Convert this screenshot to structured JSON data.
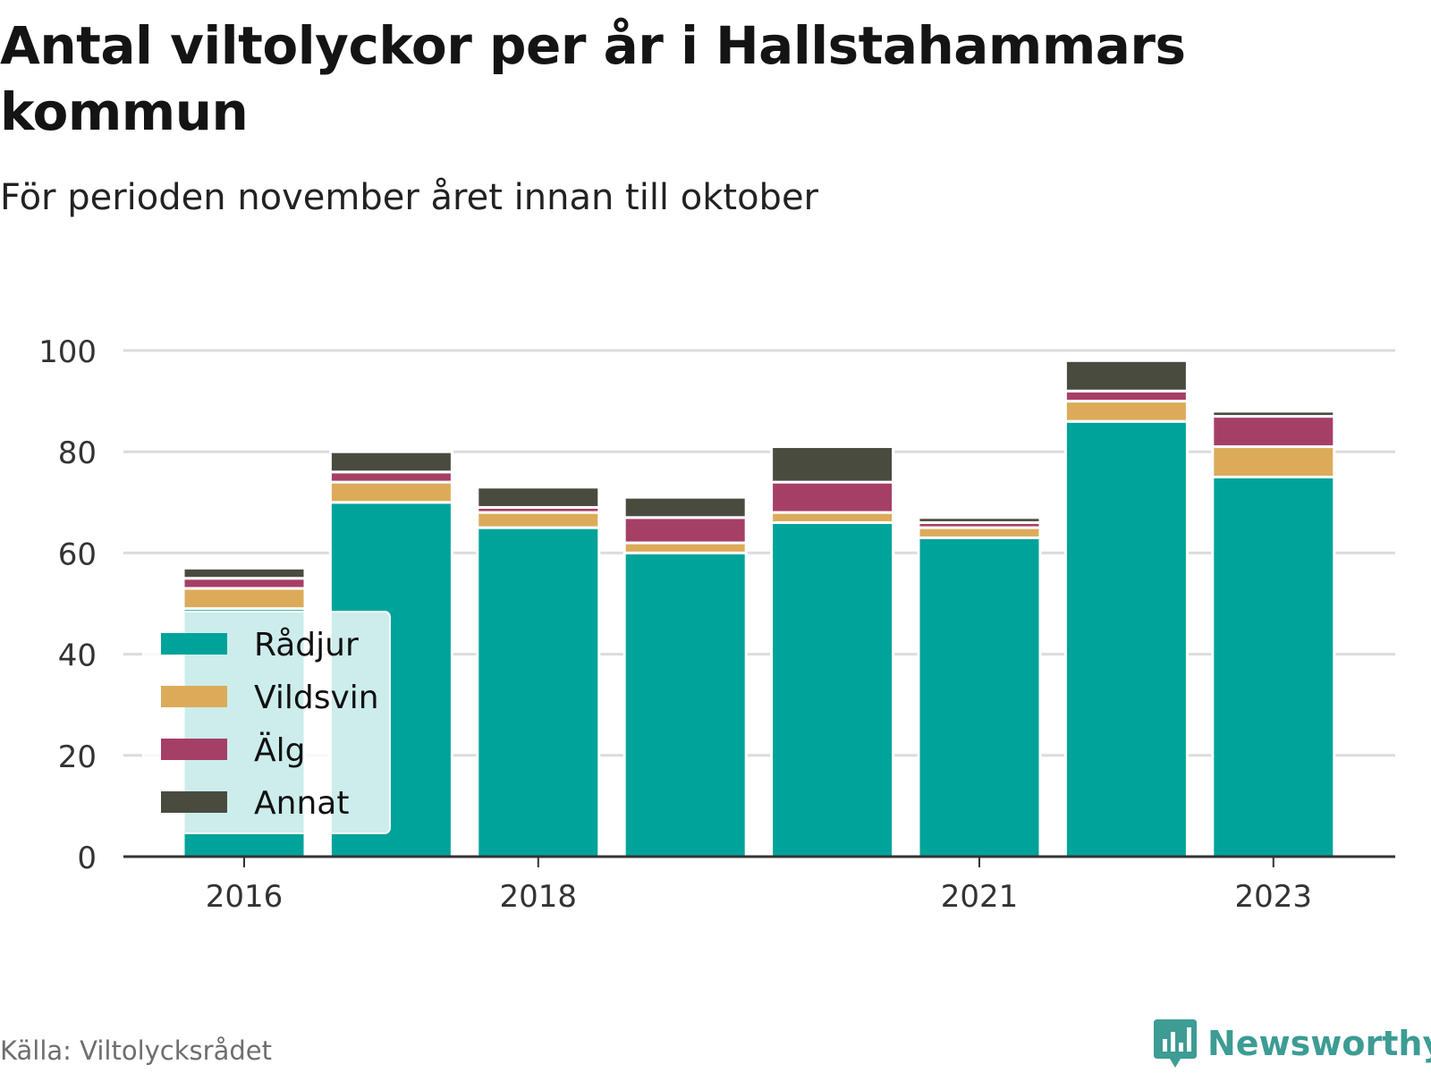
{
  "title": "Antal viltolyckor per år i Hallstahammars kommun",
  "subtitle": "För perioden november året innan till oktober",
  "source": "Källa: Viltolycksrådet",
  "brand": "Newsworthy",
  "colors": {
    "Rådjur": "#00a39a",
    "Vildsvin": "#dcab5a",
    "Älg": "#a63f66",
    "Annat": "#4a4b3f",
    "brand": "#3d9c94"
  },
  "chart_data": {
    "type": "bar",
    "stacked": true,
    "categories": [
      "2016",
      "2017",
      "2018",
      "2019",
      "2020",
      "2021",
      "2022",
      "2023"
    ],
    "x_tick_labels": [
      "2016",
      "2018",
      "2021",
      "2023"
    ],
    "series": [
      {
        "name": "Rådjur",
        "values": [
          49,
          70,
          65,
          60,
          66,
          63,
          86,
          75
        ]
      },
      {
        "name": "Vildsvin",
        "values": [
          4,
          4,
          3,
          2,
          2,
          2,
          4,
          6
        ]
      },
      {
        "name": "Älg",
        "values": [
          2,
          2,
          1,
          5,
          6,
          1,
          2,
          6
        ]
      },
      {
        "name": "Annat",
        "values": [
          2,
          4,
          4,
          4,
          7,
          1,
          6,
          1
        ]
      }
    ],
    "ylim": [
      0,
      100
    ],
    "yticks": [
      0,
      20,
      40,
      60,
      80,
      100
    ],
    "grid": true,
    "legend_position": "bottom-left"
  }
}
